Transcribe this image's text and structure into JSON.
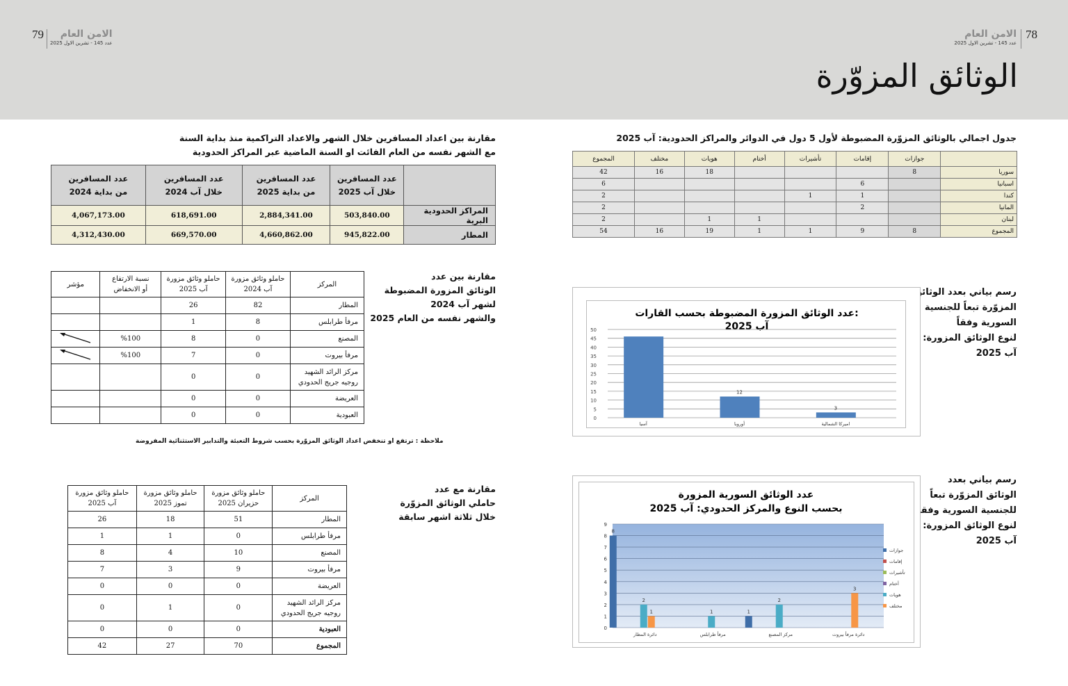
{
  "header": {
    "right_page_number": "78",
    "left_page_number": "79",
    "magazine_name": "الامن العام",
    "issue_line": "عدد 145 - تشرين الاول 2025",
    "page_title": "الوثائق المزوّرة"
  },
  "table_countries": {
    "caption": "جدول اجمالي بالوثائق المزوّرة المضبوطة لأول 5 دول في الدوائر والمراكز الحدودية: آب 2025",
    "headers": [
      "",
      "جوازات",
      "إقامات",
      "تأشيرات",
      "أختام",
      "هويات",
      "مختلف",
      "المجموع"
    ],
    "rows": [
      [
        "سوريا",
        "8",
        "",
        "",
        "",
        "18",
        "16",
        "42"
      ],
      [
        "اسبانيا",
        "",
        "6",
        "",
        "",
        "",
        "",
        "6"
      ],
      [
        "كندا",
        "",
        "1",
        "1",
        "",
        "",
        "",
        "2"
      ],
      [
        "المانيا",
        "",
        "2",
        "",
        "",
        "",
        "",
        "2"
      ],
      [
        "لبنان",
        "",
        "",
        "",
        "1",
        "1",
        "",
        "2"
      ],
      [
        "المجموع",
        "8",
        "9",
        "1",
        "1",
        "19",
        "16",
        "54"
      ]
    ]
  },
  "table_travellers": {
    "caption_line1": "مقارنة بين اعداد المسافرين خلال الشهر والاعداد التراكمية منذ بداية السنة",
    "caption_line2": "مع الشهر نفسه من العام الفائت او السنة الماضية عبر المراكز الحدودية",
    "headers": [
      "",
      "عدد المسافرين\nخلال آب 2025",
      "عدد المسافرين\nمن بداية 2025",
      "عدد المسافرين\nخلال آب 2024",
      "عدد المسافرين\nمن بداية 2024"
    ],
    "rows": [
      [
        "المراكز الحدودية  البرية",
        "503,840.00",
        "2,884,341.00",
        "618,691.00",
        "4,067,173.00"
      ],
      [
        "المطار",
        "945,822.00",
        "4,660,862.00",
        "669,570.00",
        "4,312,430.00"
      ]
    ]
  },
  "table_yoy": {
    "caption": "مقارنة بين عدد\nالوثائق المزورة المضبوطة\nلشهر آب 2024\nوالشهر نفسه من العام 2025",
    "headers": [
      "المركز",
      "حاملو وثائق مزورة\nآب 2024",
      "حاملو وثائق مزورة\nآب 2025",
      "نسبة الارتفاع\nأو الانخفاض",
      "مؤشر"
    ],
    "rows": [
      [
        "المطار",
        "82",
        "26",
        "",
        ""
      ],
      [
        "مرفأ طرابلس",
        "8",
        "1",
        "",
        ""
      ],
      [
        "المصنع",
        "0",
        "8",
        "%100",
        "arrow-up-left-icon"
      ],
      [
        "مرفأ بيروت",
        "0",
        "7",
        "%100",
        "arrow-up-left-icon"
      ],
      [
        "مركز الرائد الشهيد\nروجيه جريج الحدودي",
        "0",
        "0",
        "",
        ""
      ],
      [
        "العريضة",
        "0",
        "0",
        "",
        ""
      ],
      [
        "العبودية",
        "0",
        "0",
        "",
        ""
      ]
    ],
    "note": "ملاحظة : ترتفع او تنخفض اعداد الوثائق المزوّرة بحسب شروط التعبئة والتدابير الاستثنائية المفروضة"
  },
  "table_three_months": {
    "caption": "مقارنة مع عدد\nحاملي الوثائق المزوّرة\nخلال ثلاثة اشهر سابقة",
    "headers": [
      "المركز",
      "حاملو وثائق مزورة\nحزيران 2025",
      "حاملو وثائق مزورة\nتموز 2025",
      "حاملو وثائق مزورة\nآب 2025"
    ],
    "rows": [
      [
        "المطار",
        "51",
        "18",
        "26"
      ],
      [
        "مرفأ طرابلس",
        "0",
        "1",
        "1"
      ],
      [
        "المصنع",
        "10",
        "4",
        "8"
      ],
      [
        "مرفأ بيروت",
        "9",
        "3",
        "7"
      ],
      [
        "العريضة",
        "0",
        "0",
        "0"
      ],
      [
        "مركز الرائد الشهيد\nروجيه جريج الحدودي",
        "0",
        "1",
        "0"
      ],
      [
        "العبودية",
        "0",
        "0",
        "0"
      ],
      [
        "المجموع",
        "70",
        "27",
        "42"
      ]
    ]
  },
  "chart_captions": {
    "continents": "رسم بياني بعدد الوثائق\nالمزوّرة تبعاً للجنسية\nالسورية وفقاً\nلنوع الوثائق المزورة:\nآب 2025",
    "syrian": "رسم بياني بعدد\nالوثائق المزوّرة تبعاً\nللجنسية السورية وفقاً\nلنوع الوثائق المزورة:\nآب 2025"
  },
  "chart_data": [
    {
      "type": "bar",
      "title": "عدد الوثائق المزورة المضبوطة بحسب القارات:\nآب 2025",
      "categories": [
        "آسيا",
        "أوروبا",
        "اميركا الشمالية"
      ],
      "values": [
        46,
        12,
        3
      ],
      "data_labels": [
        "",
        "12",
        "3"
      ],
      "ylim": [
        0,
        50
      ],
      "yticks": [
        0,
        5,
        10,
        15,
        20,
        25,
        30,
        35,
        40,
        45,
        50
      ],
      "grid": true,
      "color": "#4f81bd"
    },
    {
      "type": "bar",
      "title": "عدد الوثائق السورية المزورة\nبحسب النوع والمركز الحدودي: آب 2025",
      "categories": [
        "دائرة المطار",
        "مرفأ طرابلس",
        "مركز المصنع",
        "دائرة مرفأ بيروت"
      ],
      "series": [
        {
          "name": "جوازات",
          "color": "#3f6ea8",
          "values": [
            8,
            0,
            1,
            0
          ]
        },
        {
          "name": "إقامات",
          "color": "#c0504d",
          "values": [
            0,
            0,
            0,
            0
          ]
        },
        {
          "name": "تأشيرات",
          "color": "#9bbb59",
          "values": [
            0,
            0,
            0,
            0
          ]
        },
        {
          "name": "أختام",
          "color": "#8064a2",
          "values": [
            0,
            0,
            0,
            0
          ]
        },
        {
          "name": "هويات",
          "color": "#4aacc6",
          "values": [
            2,
            1,
            2,
            0
          ]
        },
        {
          "name": "مختلف",
          "color": "#f79646",
          "values": [
            1,
            0,
            0,
            3
          ]
        }
      ],
      "ylim": [
        0,
        9
      ],
      "yticks": [
        0,
        1,
        2,
        3,
        4,
        5,
        6,
        7,
        8,
        9
      ],
      "grid": true,
      "legend": "right"
    }
  ]
}
